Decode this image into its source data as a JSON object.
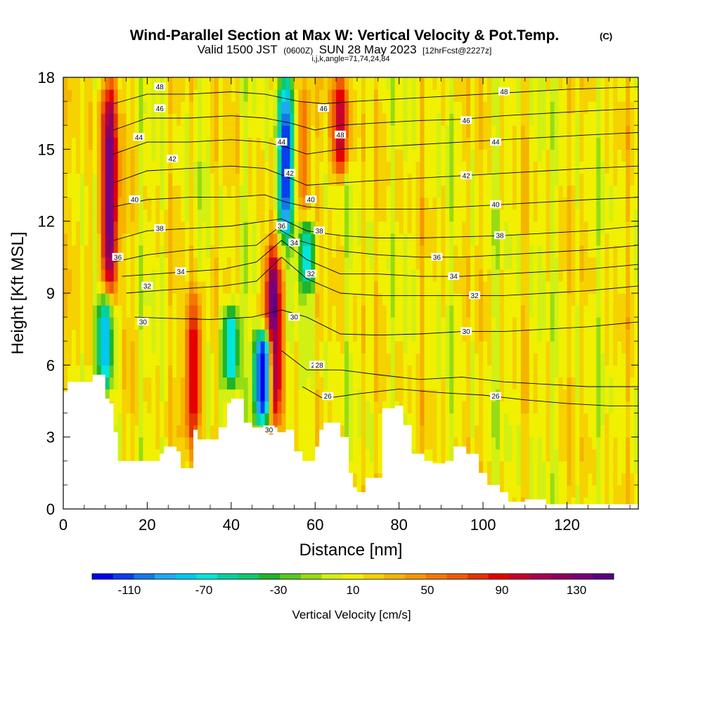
{
  "header": {
    "title": "Wind-Parallel Section at Max W: Vertical Velocity & Pot.Temp.",
    "copyright": "(C)",
    "valid_prefix": "Valid 1500 JST",
    "valid_utc": "(0600Z)",
    "valid_date": "SUN 28 May 2023",
    "forecast": "[12hrFcst@2227z]",
    "indices": "i,j,k,angle=71,74,24,84"
  },
  "chart_data": {
    "type": "heatmap",
    "xlabel": "Distance [nm]",
    "ylabel": "Height [Kft MSL]",
    "xlim": [
      0,
      137
    ],
    "ylim": [
      0,
      18
    ],
    "x_ticks": [
      "0",
      "20",
      "40",
      "60",
      "80",
      "100",
      "120"
    ],
    "y_ticks": [
      "0",
      "3",
      "6",
      "9",
      "12",
      "15",
      "18"
    ],
    "colorbar": {
      "label": "Vertical Velocity [cm/s]",
      "tick_labels": [
        "-110",
        "-70",
        "-30",
        "10",
        "50",
        "90",
        "130"
      ],
      "levels": [
        -130,
        -110,
        -90,
        -70,
        -50,
        -30,
        -10,
        10,
        30,
        50,
        70,
        90,
        110,
        130,
        150
      ],
      "colors": [
        "#0000f0",
        "#0a3cf0",
        "#1478e6",
        "#1eaaf0",
        "#00c8f0",
        "#00e6dc",
        "#00d2a0",
        "#10c870",
        "#20b428",
        "#58c820",
        "#96dc14",
        "#d2f014",
        "#f0f000",
        "#f5d200",
        "#f5b400",
        "#f59600",
        "#f57800",
        "#f05a00",
        "#e63200",
        "#e60000",
        "#c8002d",
        "#aa0050",
        "#8c005f",
        "#78007d",
        "#5a0082"
      ]
    },
    "updraft_cores": [
      {
        "x": 11,
        "y_range": [
          8.5,
          18
        ],
        "w_cm_s": 140
      },
      {
        "x": 31,
        "y_range": [
          2.5,
          9
        ],
        "w_cm_s": 95
      },
      {
        "x": 50,
        "y_range": [
          3.5,
          11
        ],
        "w_cm_s": 150
      },
      {
        "x": 57,
        "y_range": [
          12,
          18
        ],
        "w_cm_s": 60
      },
      {
        "x": 66,
        "y_range": [
          14,
          18
        ],
        "w_cm_s": 110
      }
    ],
    "downdraft_cores": [
      {
        "x": 10,
        "y_range": [
          5,
          9
        ],
        "w_cm_s": -85
      },
      {
        "x": 40,
        "y_range": [
          5,
          8.5
        ],
        "w_cm_s": -80
      },
      {
        "x": 47.5,
        "y_range": [
          3.5,
          7.5
        ],
        "w_cm_s": -140
      },
      {
        "x": 53,
        "y_range": [
          11,
          18
        ],
        "w_cm_s": -120
      },
      {
        "x": 58,
        "y_range": [
          9,
          12
        ],
        "w_cm_s": -70
      }
    ],
    "terrain_top_kft": [
      [
        0,
        4.9
      ],
      [
        1,
        5.3
      ],
      [
        7,
        5.6
      ],
      [
        10,
        4.6
      ],
      [
        11,
        4.4
      ],
      [
        12,
        3.2
      ],
      [
        13,
        2.0
      ],
      [
        22,
        2.0
      ],
      [
        23,
        2.3
      ],
      [
        24,
        2.6
      ],
      [
        27,
        2.4
      ],
      [
        28,
        1.7
      ],
      [
        30,
        1.7
      ],
      [
        31,
        3.3
      ],
      [
        32,
        2.9
      ],
      [
        36,
        2.9
      ],
      [
        37,
        3.4
      ],
      [
        39,
        4.4
      ],
      [
        40,
        4.6
      ],
      [
        43,
        3.6
      ],
      [
        45,
        3.4
      ],
      [
        49,
        3.1
      ],
      [
        50,
        3.4
      ],
      [
        51,
        3.2
      ],
      [
        53,
        3.3
      ],
      [
        55,
        2.4
      ],
      [
        57,
        2.0
      ],
      [
        59,
        2.0
      ],
      [
        60,
        2.6
      ],
      [
        61,
        3.3
      ],
      [
        62,
        3.6
      ],
      [
        66,
        3.0
      ],
      [
        68,
        1.5
      ],
      [
        69,
        0.9
      ],
      [
        70,
        0.7
      ],
      [
        72,
        1.3
      ],
      [
        76,
        4.2
      ],
      [
        79,
        4.3
      ],
      [
        81,
        3.5
      ],
      [
        83,
        2.3
      ],
      [
        86,
        2.0
      ],
      [
        88,
        1.9
      ],
      [
        91,
        2.0
      ],
      [
        93,
        2.6
      ],
      [
        96,
        2.3
      ],
      [
        99,
        1.5
      ],
      [
        101,
        1.0
      ],
      [
        104,
        0.7
      ],
      [
        106,
        0.3
      ],
      [
        110,
        0.4
      ],
      [
        115,
        0.2
      ],
      [
        137,
        0.2
      ]
    ],
    "theta_contours": [
      {
        "label": "26",
        "label_pos": [
          103,
          4.7
        ],
        "points": [
          [
            57,
            5.1
          ],
          [
            62,
            4.6
          ],
          [
            70,
            4.8
          ],
          [
            80,
            5.0
          ],
          [
            90,
            4.85
          ],
          [
            100,
            4.75
          ],
          [
            110,
            4.55
          ],
          [
            120,
            4.4
          ],
          [
            130,
            4.3
          ],
          [
            137,
            4.3
          ]
        ]
      },
      {
        "label": "28",
        "label_pos": [
          60,
          6.0
        ],
        "points": [
          [
            52,
            6.6
          ],
          [
            58,
            5.8
          ],
          [
            66,
            5.8
          ],
          [
            75,
            5.6
          ],
          [
            85,
            5.4
          ],
          [
            95,
            5.5
          ],
          [
            105,
            5.3
          ],
          [
            115,
            5.2
          ],
          [
            125,
            5.1
          ],
          [
            137,
            5.1
          ]
        ]
      },
      {
        "label": "30",
        "label_pos": [
          96,
          7.4
        ],
        "points": [
          [
            17,
            8.0
          ],
          [
            25,
            7.95
          ],
          [
            35,
            7.9
          ],
          [
            45,
            8.0
          ],
          [
            52,
            8.3
          ],
          [
            58,
            8.0
          ],
          [
            66,
            7.3
          ],
          [
            75,
            7.25
          ],
          [
            85,
            7.3
          ],
          [
            95,
            7.4
          ],
          [
            105,
            7.4
          ],
          [
            115,
            7.5
          ],
          [
            125,
            7.6
          ],
          [
            137,
            7.8
          ]
        ]
      },
      {
        "label": "32",
        "label_pos": [
          98,
          8.9
        ],
        "points": [
          [
            15,
            9.0
          ],
          [
            22,
            9.1
          ],
          [
            30,
            9.2
          ],
          [
            38,
            9.3
          ],
          [
            46,
            9.5
          ],
          [
            52,
            10.5
          ],
          [
            58,
            9.6
          ],
          [
            66,
            9.0
          ],
          [
            75,
            8.9
          ],
          [
            85,
            8.9
          ],
          [
            95,
            8.9
          ],
          [
            105,
            8.9
          ],
          [
            115,
            9.0
          ],
          [
            125,
            9.1
          ],
          [
            137,
            9.3
          ]
        ]
      },
      {
        "label": "34",
        "label_pos": [
          93,
          9.7
        ],
        "points": [
          [
            14,
            9.7
          ],
          [
            22,
            9.8
          ],
          [
            30,
            9.9
          ],
          [
            38,
            10.0
          ],
          [
            46,
            10.3
          ],
          [
            52,
            11.2
          ],
          [
            58,
            10.4
          ],
          [
            66,
            9.8
          ],
          [
            75,
            9.8
          ],
          [
            85,
            9.7
          ],
          [
            95,
            9.7
          ],
          [
            105,
            9.8
          ],
          [
            115,
            9.9
          ],
          [
            125,
            10.0
          ],
          [
            137,
            10.2
          ]
        ]
      },
      {
        "label": "36",
        "label_pos": [
          89,
          10.5
        ],
        "points": [
          [
            12,
            10.3
          ],
          [
            20,
            10.6
          ],
          [
            30,
            10.8
          ],
          [
            38,
            10.9
          ],
          [
            46,
            11.0
          ],
          [
            51,
            11.7
          ],
          [
            56,
            11.2
          ],
          [
            64,
            10.8
          ],
          [
            75,
            10.6
          ],
          [
            85,
            10.5
          ],
          [
            95,
            10.5
          ],
          [
            105,
            10.6
          ],
          [
            115,
            10.7
          ],
          [
            125,
            10.8
          ],
          [
            137,
            11.0
          ]
        ]
      },
      {
        "label": "38",
        "label_pos": [
          104,
          11.4
        ],
        "points": [
          [
            12,
            11.2
          ],
          [
            20,
            11.6
          ],
          [
            30,
            11.7
          ],
          [
            40,
            11.8
          ],
          [
            48,
            12.0
          ],
          [
            52,
            12.1
          ],
          [
            58,
            11.6
          ],
          [
            66,
            11.4
          ],
          [
            75,
            11.3
          ],
          [
            85,
            11.3
          ],
          [
            95,
            11.35
          ],
          [
            105,
            11.4
          ],
          [
            115,
            11.5
          ],
          [
            125,
            11.6
          ],
          [
            137,
            11.8
          ]
        ]
      },
      {
        "label": "40",
        "label_pos": [
          103,
          12.7
        ],
        "points": [
          [
            12,
            12.6
          ],
          [
            20,
            12.9
          ],
          [
            30,
            13.0
          ],
          [
            40,
            13.0
          ],
          [
            48,
            13.1
          ],
          [
            53,
            12.8
          ],
          [
            58,
            12.6
          ],
          [
            66,
            12.5
          ],
          [
            75,
            12.5
          ],
          [
            85,
            12.5
          ],
          [
            95,
            12.6
          ],
          [
            105,
            12.7
          ],
          [
            115,
            12.8
          ],
          [
            125,
            12.9
          ],
          [
            137,
            13.0
          ]
        ]
      },
      {
        "label": "42",
        "label_pos": [
          96,
          13.9
        ],
        "points": [
          [
            12,
            13.6
          ],
          [
            20,
            14.1
          ],
          [
            30,
            14.2
          ],
          [
            40,
            14.3
          ],
          [
            48,
            14.2
          ],
          [
            54,
            13.8
          ],
          [
            58,
            13.5
          ],
          [
            66,
            13.6
          ],
          [
            75,
            13.7
          ],
          [
            85,
            13.8
          ],
          [
            95,
            13.9
          ],
          [
            105,
            14.0
          ],
          [
            115,
            14.1
          ],
          [
            125,
            14.2
          ],
          [
            137,
            14.3
          ]
        ]
      },
      {
        "label": "44",
        "label_pos": [
          103,
          15.3
        ],
        "points": [
          [
            12,
            14.8
          ],
          [
            20,
            15.3
          ],
          [
            30,
            15.3
          ],
          [
            40,
            15.4
          ],
          [
            48,
            15.3
          ],
          [
            53,
            15.1
          ],
          [
            58,
            14.8
          ],
          [
            66,
            15.0
          ],
          [
            75,
            15.1
          ],
          [
            85,
            15.2
          ],
          [
            95,
            15.3
          ],
          [
            105,
            15.4
          ],
          [
            115,
            15.5
          ],
          [
            125,
            15.6
          ],
          [
            137,
            15.7
          ]
        ]
      },
      {
        "label": "46",
        "label_pos": [
          96,
          16.2
        ],
        "points": [
          [
            12,
            15.8
          ],
          [
            20,
            16.3
          ],
          [
            30,
            16.3
          ],
          [
            40,
            16.4
          ],
          [
            48,
            16.3
          ],
          [
            54,
            16.1
          ],
          [
            60,
            15.8
          ],
          [
            66,
            16.0
          ],
          [
            75,
            16.1
          ],
          [
            85,
            16.2
          ],
          [
            95,
            16.25
          ],
          [
            105,
            16.4
          ],
          [
            115,
            16.5
          ],
          [
            125,
            16.6
          ],
          [
            137,
            16.7
          ]
        ]
      },
      {
        "label": "48",
        "label_pos": [
          105,
          17.4
        ],
        "points": [
          [
            12,
            16.9
          ],
          [
            20,
            17.3
          ],
          [
            30,
            17.3
          ],
          [
            40,
            17.4
          ],
          [
            48,
            17.3
          ],
          [
            56,
            17.0
          ],
          [
            62,
            16.9
          ],
          [
            70,
            17.0
          ],
          [
            80,
            17.1
          ],
          [
            90,
            17.2
          ],
          [
            100,
            17.3
          ],
          [
            110,
            17.4
          ],
          [
            120,
            17.5
          ],
          [
            137,
            17.6
          ]
        ]
      }
    ],
    "extra_contour_labels": [
      {
        "label": "36",
        "x": 13,
        "y": 10.5
      },
      {
        "label": "34",
        "x": 28,
        "y": 9.9
      },
      {
        "label": "32",
        "x": 20,
        "y": 9.3
      },
      {
        "label": "30",
        "x": 19,
        "y": 7.8
      },
      {
        "label": "38",
        "x": 23,
        "y": 11.7
      },
      {
        "label": "40",
        "x": 17,
        "y": 12.9
      },
      {
        "label": "42",
        "x": 26,
        "y": 14.6
      },
      {
        "label": "44",
        "x": 18,
        "y": 15.5
      },
      {
        "label": "46",
        "x": 23,
        "y": 16.7
      },
      {
        "label": "48",
        "x": 23,
        "y": 17.6
      },
      {
        "label": "44",
        "x": 52,
        "y": 15.3
      },
      {
        "label": "42",
        "x": 54,
        "y": 14.0
      },
      {
        "label": "40",
        "x": 59,
        "y": 12.9
      },
      {
        "label": "38",
        "x": 61,
        "y": 11.6
      },
      {
        "label": "36",
        "x": 52,
        "y": 11.8
      },
      {
        "label": "34",
        "x": 55,
        "y": 11.1
      },
      {
        "label": "32",
        "x": 59,
        "y": 9.8
      },
      {
        "label": "30",
        "x": 55,
        "y": 8.0
      },
      {
        "label": "28",
        "x": 61,
        "y": 6.0
      },
      {
        "label": "26",
        "x": 63,
        "y": 4.7
      },
      {
        "label": "30",
        "x": 49,
        "y": 3.3
      },
      {
        "label": "46",
        "x": 62,
        "y": 16.7
      },
      {
        "label": "48",
        "x": 66,
        "y": 15.6
      }
    ]
  }
}
